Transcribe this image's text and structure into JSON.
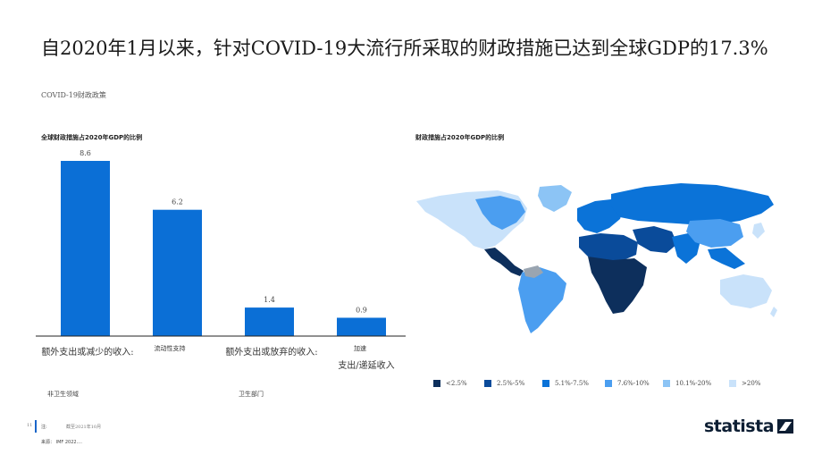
{
  "title": "自2020年1月以来，针对COVID-19大流行所采取的财政措施已达到全球GDP的17.3%",
  "subtitle": "COVID-19财政政策",
  "left_panel_title": "全球财政措施占2020年GDP的比例",
  "right_panel_title": "财政措施占2020年GDP的比例",
  "categories": [
    {
      "label": "额外支出或减少的收入:",
      "size": "large"
    },
    {
      "label": "流动性支持",
      "size": "small"
    },
    {
      "label": "额外支出或放弃的收入:",
      "size": "large"
    },
    {
      "label_top": "加速",
      "label_bottom": "支出/递延收入"
    }
  ],
  "group_labels": [
    "非卫生领域",
    "卫生部门"
  ],
  "chart_data": {
    "type": "bar",
    "title": "全球财政措施占2020年GDP的比例",
    "categories": [
      "额外支出或减少的收入: 非卫生领域",
      "流动性支持",
      "额外支出或放弃的收入: 卫生部门",
      "加速 支出/递延收入"
    ],
    "values": [
      8.6,
      6.2,
      1.4,
      0.9
    ],
    "value_labels": [
      "8.6",
      "6.2",
      "1.4",
      "0.9"
    ],
    "ylim": [
      0,
      10
    ],
    "grid": false,
    "bar_color": "#0b6fd6"
  },
  "map_legend": [
    {
      "label": "<2.5%",
      "color": "#0d2f5c"
    },
    {
      "label": "2.5%-5%",
      "color": "#0a4b9a"
    },
    {
      "label": "5.1%-7.5%",
      "color": "#0b73d8"
    },
    {
      "label": "7.6%-10%",
      "color": "#4b9ef0"
    },
    {
      "label": "10.1%-20%",
      "color": "#8cc4f5"
    },
    {
      "label": ">20%",
      "color": "#c9e2fa"
    }
  ],
  "footer": {
    "page_number": "11",
    "note_label": "注:",
    "note_text": "截至2021年10月",
    "source": "来源： IMF 2022...."
  },
  "logo_text": "statista"
}
